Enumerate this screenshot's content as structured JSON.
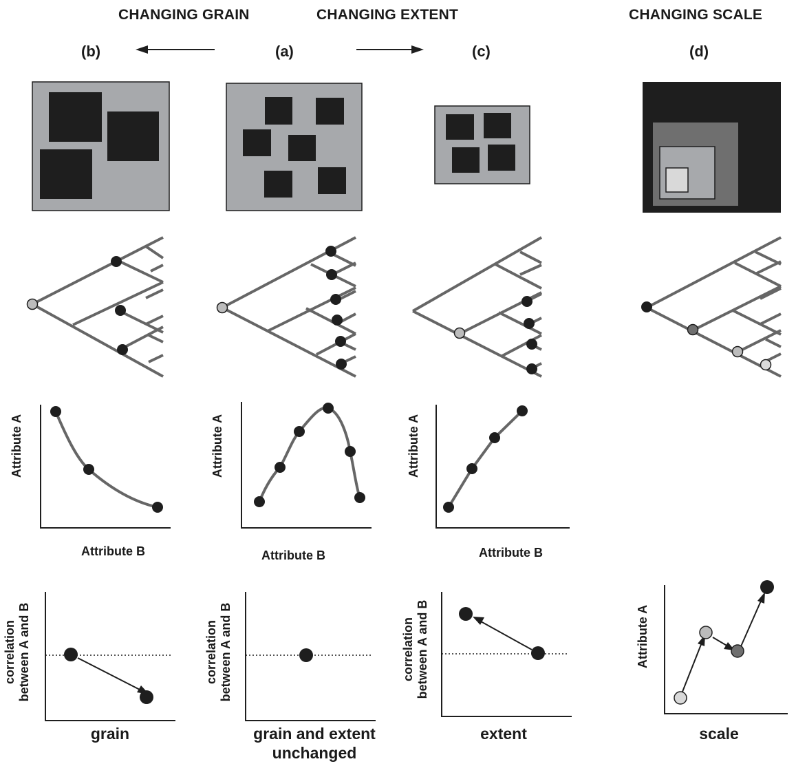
{
  "headers": {
    "grain": "CHANGING GRAIN",
    "extent": "CHANGING EXTENT",
    "scale": "CHANGING SCALE"
  },
  "panel_labels": {
    "b": "(b)",
    "a": "(a)",
    "c": "(c)",
    "d": "(d)"
  },
  "attribute_plots": {
    "ylabel": "Attribute A",
    "xlabel": "Attribute B"
  },
  "correlation_plots": {
    "ylabel_line1": "correlation",
    "ylabel_line2": "between A and B",
    "xlabel_b": "grain",
    "xlabel_a_line1": "grain and extent",
    "xlabel_a_line2": "unchanged",
    "xlabel_c": "extent"
  },
  "scale_plot": {
    "ylabel": "Attribute A",
    "xlabel": "scale"
  },
  "colors": {
    "dark": "#1e1e1e",
    "patch_bg": "#a7a9ac",
    "branch": "#666666",
    "node_light": "#bcbcbc",
    "node_mid": "#6f6f6f",
    "node_pale": "#d9d9d9"
  }
}
